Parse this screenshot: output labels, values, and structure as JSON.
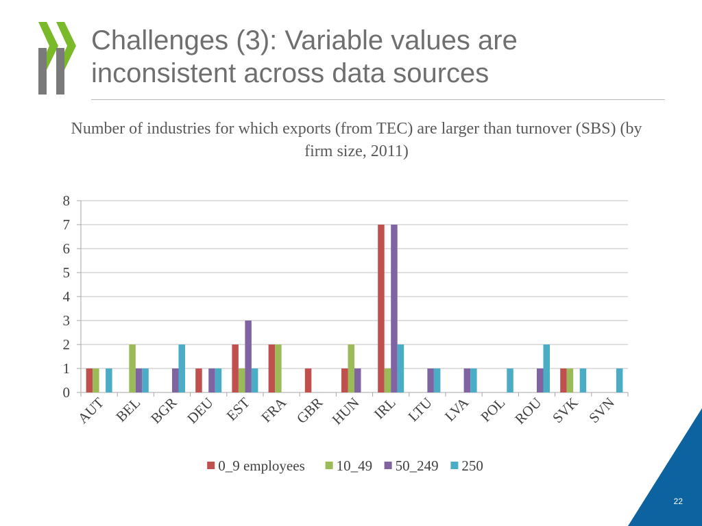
{
  "slide": {
    "title": "Challenges (3): Variable values are inconsistent across data sources",
    "page_number": "22",
    "brand_colors": {
      "logo_green": "#7ab929",
      "logo_gray": "#7a7a7a",
      "corner_blue": "#0d63a0"
    }
  },
  "chart_data": {
    "type": "bar",
    "title": "Number of industries for which exports (from TEC) are larger than turnover (SBS) (by firm size, 2011)",
    "xlabel": "",
    "ylabel": "",
    "ylim": [
      0,
      8
    ],
    "yticks": [
      0,
      1,
      2,
      3,
      4,
      5,
      6,
      7,
      8
    ],
    "grid": true,
    "legend_position": "bottom",
    "categories": [
      "AUT",
      "BEL",
      "BGR",
      "DEU",
      "EST",
      "FRA",
      "GBR",
      "HUN",
      "IRL",
      "LTU",
      "LVA",
      "POL",
      "ROU",
      "SVK",
      "SVN"
    ],
    "series": [
      {
        "name": "0_9 employees",
        "color": "#c0504d",
        "values": [
          1,
          0,
          0,
          1,
          2,
          2,
          1,
          1,
          7,
          0,
          0,
          0,
          0,
          1,
          0
        ]
      },
      {
        "name": "10_49",
        "color": "#9bbb59",
        "values": [
          1,
          2,
          0,
          0,
          1,
          2,
          0,
          2,
          1,
          0,
          0,
          0,
          0,
          1,
          0
        ]
      },
      {
        "name": "50_249",
        "color": "#8064a2",
        "values": [
          0,
          1,
          1,
          1,
          3,
          0,
          0,
          1,
          7,
          1,
          1,
          0,
          1,
          0,
          0
        ]
      },
      {
        "name": "250",
        "color": "#4bacc6",
        "values": [
          1,
          1,
          2,
          1,
          1,
          0,
          0,
          0,
          2,
          1,
          1,
          1,
          2,
          1,
          1
        ]
      }
    ]
  }
}
